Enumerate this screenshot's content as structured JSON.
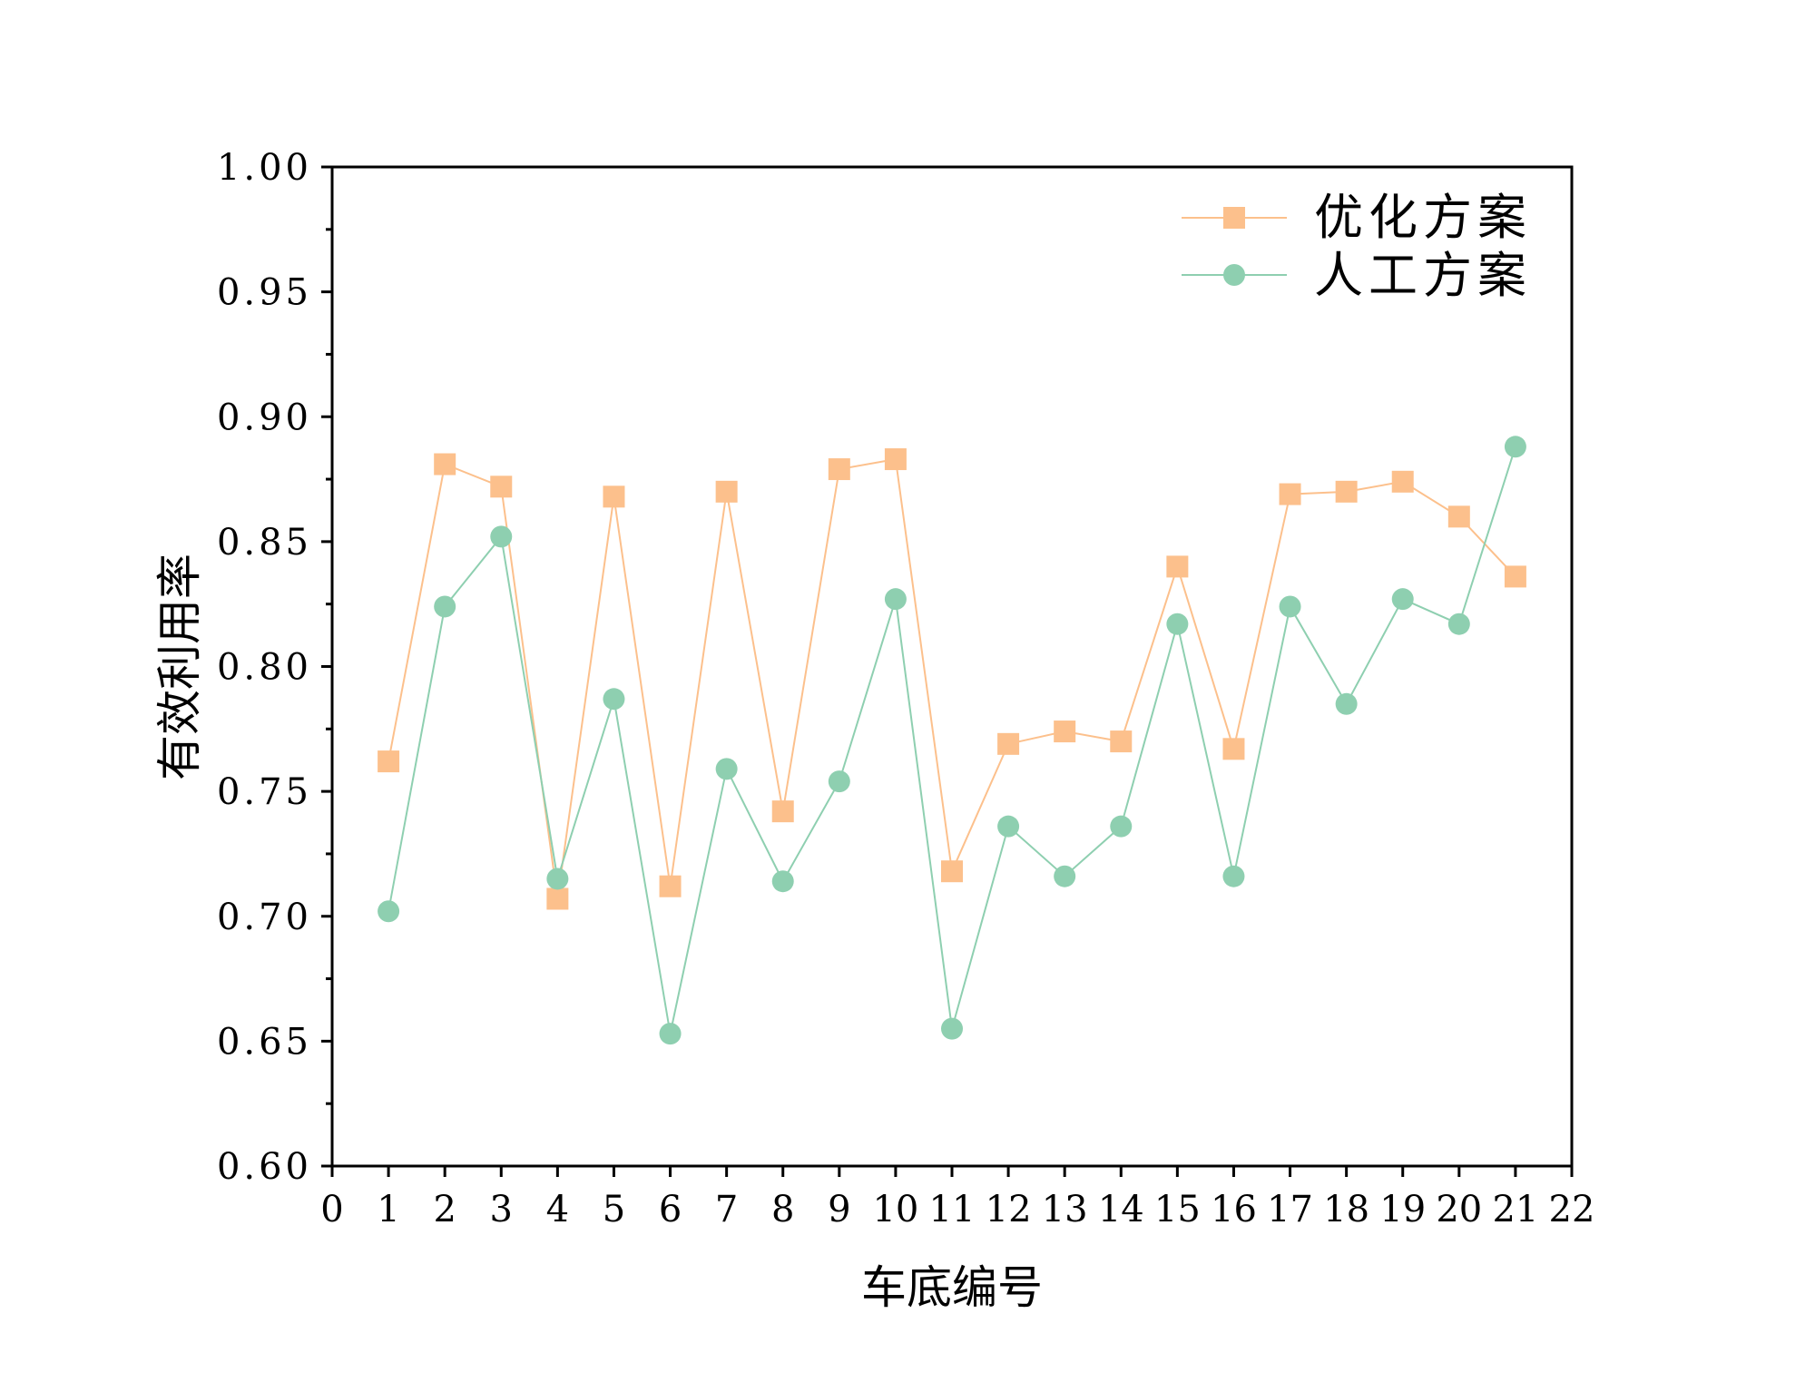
{
  "chart_data": {
    "type": "line",
    "title": "",
    "xlabel": "车底编号",
    "ylabel": "有效利用率",
    "xlim": [
      0,
      22
    ],
    "ylim": [
      0.6,
      1.0
    ],
    "xticks": [
      0,
      1,
      2,
      3,
      4,
      5,
      6,
      7,
      8,
      9,
      10,
      11,
      12,
      13,
      14,
      15,
      16,
      17,
      18,
      19,
      20,
      21,
      22
    ],
    "yticks": [
      "0.60",
      "0.65",
      "0.70",
      "0.75",
      "0.80",
      "0.85",
      "0.90",
      "0.95",
      "1.00"
    ],
    "grid": false,
    "legend_position": "top-right",
    "x": [
      1,
      2,
      3,
      4,
      5,
      6,
      7,
      8,
      9,
      10,
      11,
      12,
      13,
      14,
      15,
      16,
      17,
      18,
      19,
      20,
      21
    ],
    "series": [
      {
        "name": "优化方案",
        "marker": "square",
        "color": "#FCC08C",
        "values": [
          0.762,
          0.881,
          0.872,
          0.707,
          0.868,
          0.712,
          0.87,
          0.742,
          0.879,
          0.883,
          0.718,
          0.769,
          0.774,
          0.77,
          0.84,
          0.767,
          0.869,
          0.87,
          0.874,
          0.86,
          0.836
        ]
      },
      {
        "name": "人工方案",
        "marker": "circle",
        "color": "#8ECFB0",
        "values": [
          0.702,
          0.824,
          0.852,
          0.715,
          0.787,
          0.653,
          0.759,
          0.714,
          0.754,
          0.827,
          0.655,
          0.736,
          0.716,
          0.736,
          0.817,
          0.716,
          0.824,
          0.785,
          0.827,
          0.817,
          0.888
        ]
      }
    ]
  }
}
